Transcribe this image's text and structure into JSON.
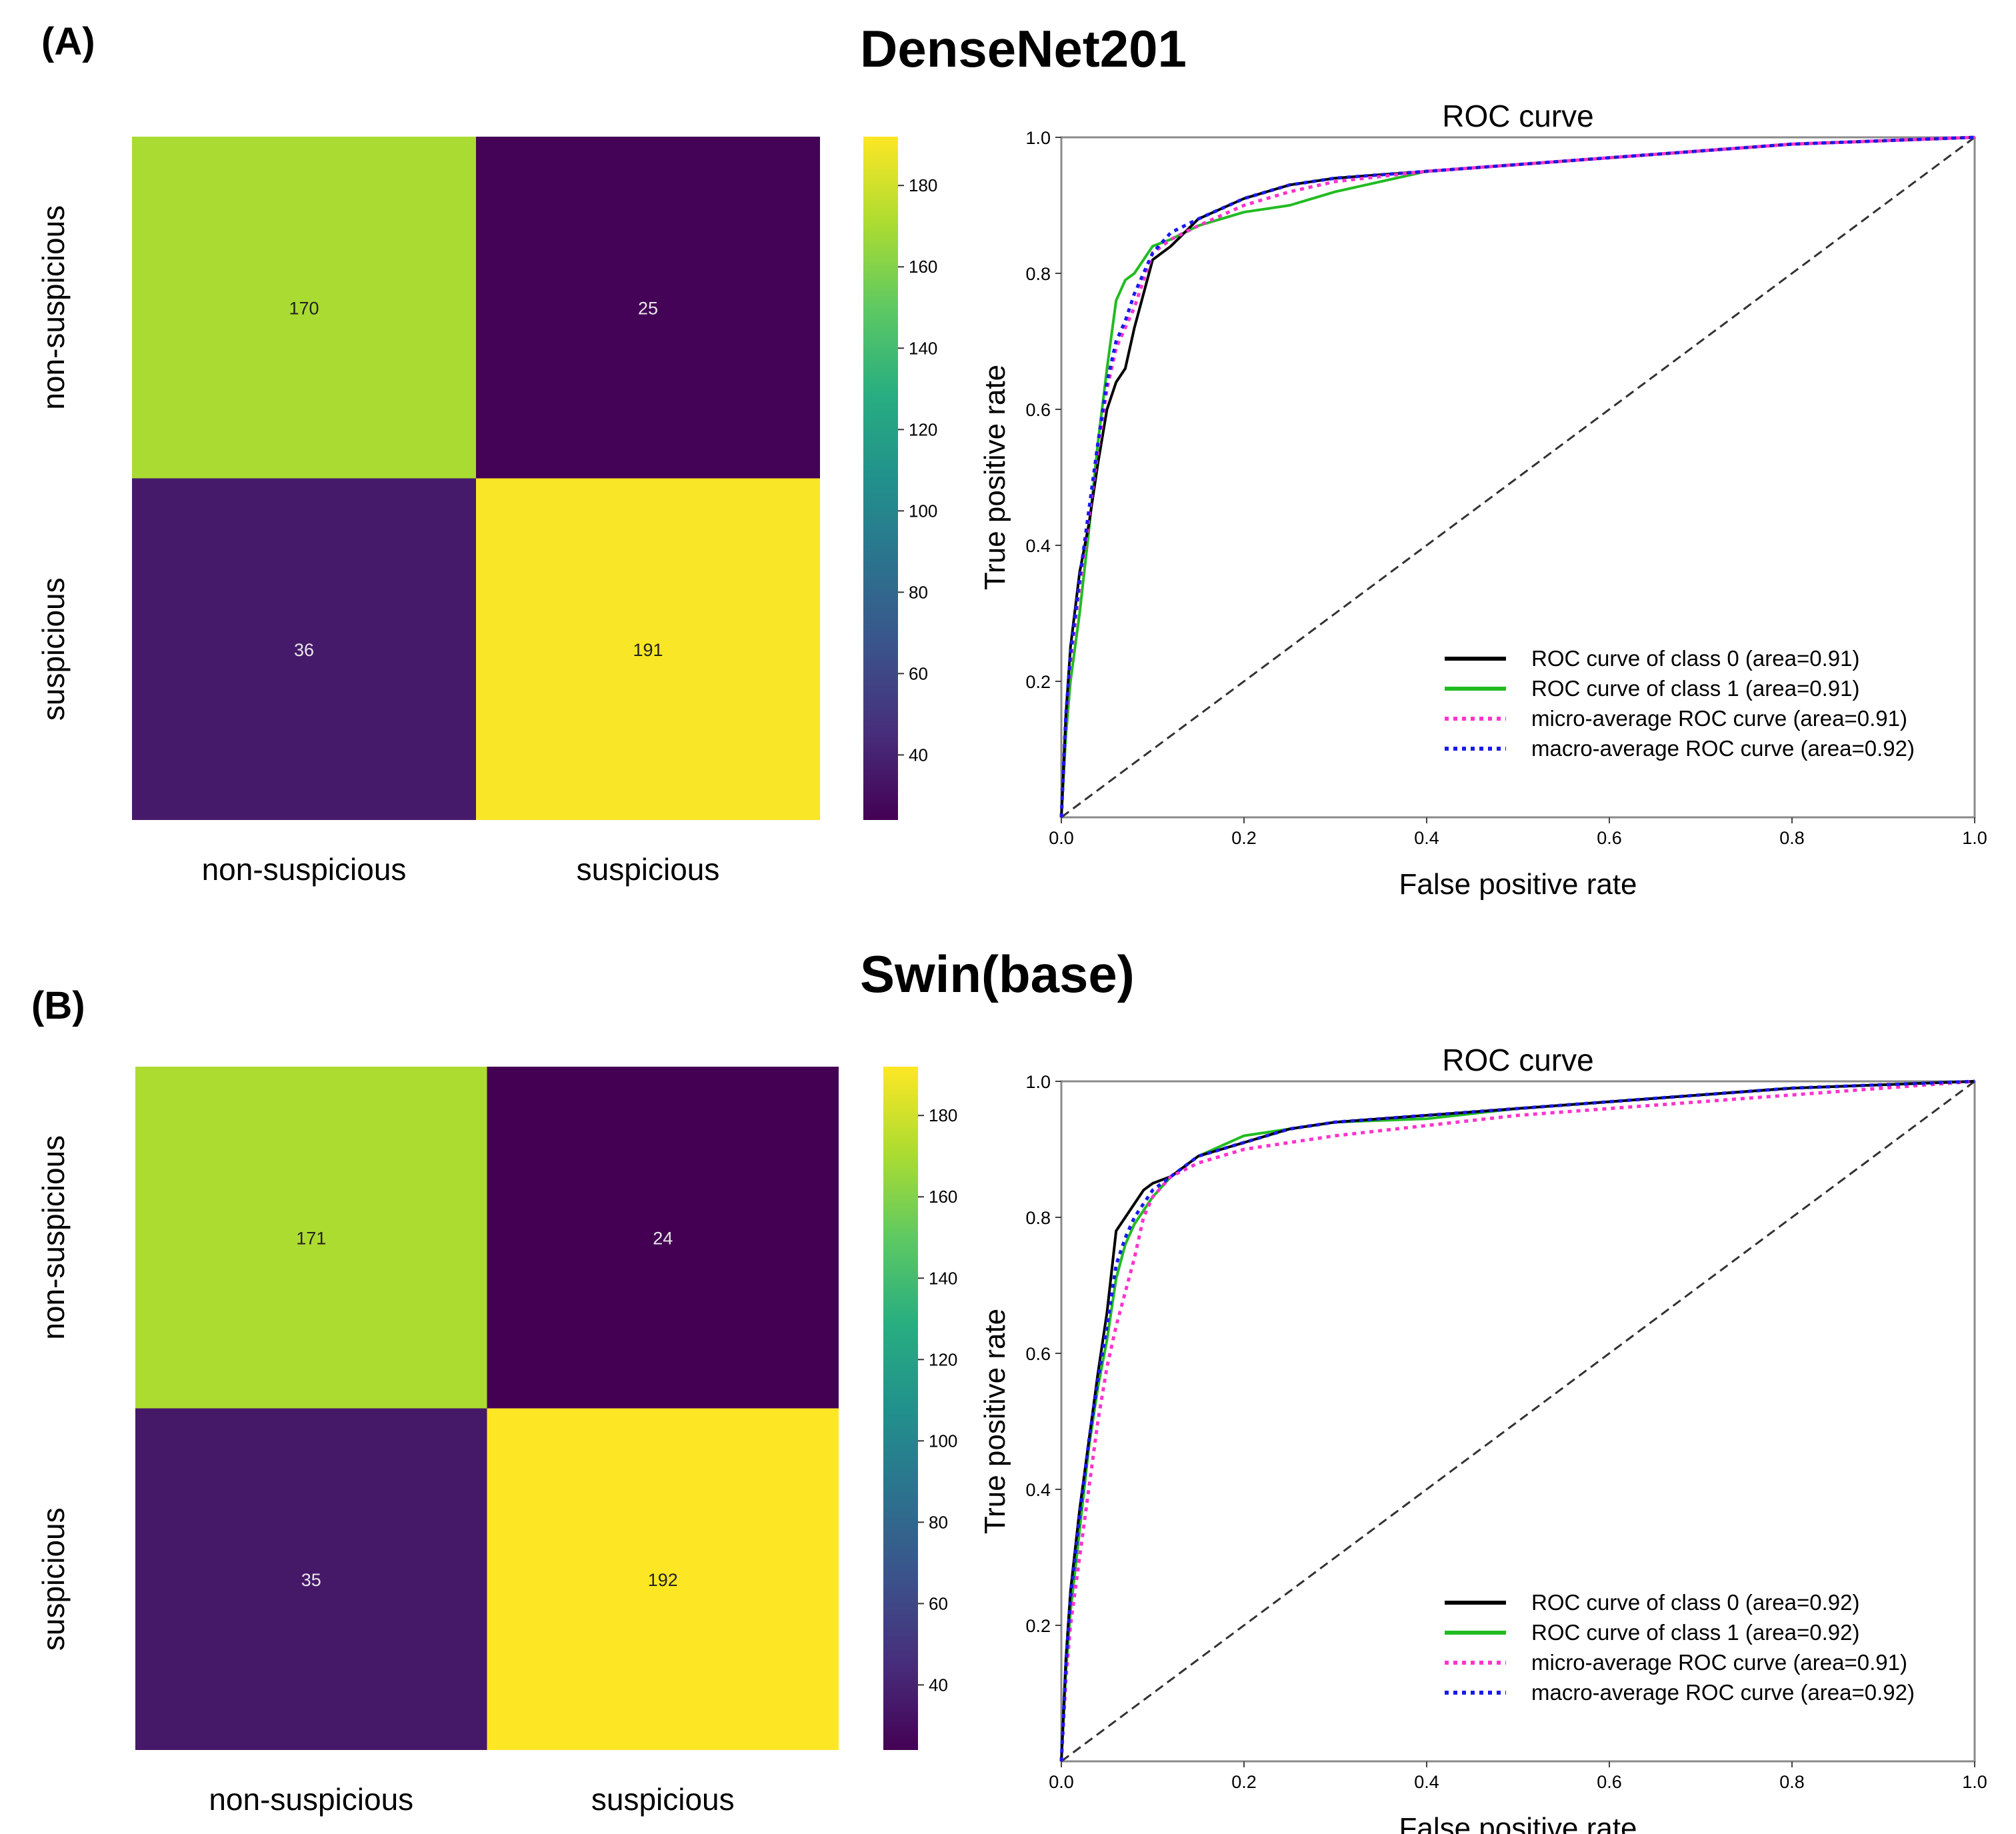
{
  "panels": [
    {
      "label": "(A)",
      "title": "DenseNet201",
      "confusion_matrix": {
        "row_labels": [
          "non-suspicious",
          "suspicious"
        ],
        "col_labels": [
          "non-suspicious",
          "suspicious"
        ],
        "values": [
          [
            170,
            25
          ],
          [
            36,
            191
          ]
        ],
        "colorbar_ticks": [
          40,
          60,
          80,
          100,
          120,
          140,
          160,
          180
        ],
        "colorbar_range": [
          24,
          192
        ]
      },
      "roc": {
        "title": "ROC curve",
        "xlabel": "False positive rate",
        "ylabel": "True positive rate",
        "x_ticks": [
          "0.0",
          "0.2",
          "0.4",
          "0.6",
          "0.8",
          "1.0"
        ],
        "y_ticks": [
          "0.2",
          "0.4",
          "0.6",
          "0.8",
          "1.0"
        ],
        "legend": [
          "ROC curve of class 0 (area=0.91)",
          "ROC curve of class 1 (area=0.91)",
          "micro-average ROC curve (area=0.91)",
          "macro-average ROC curve (area=0.92)"
        ]
      }
    },
    {
      "label": "(B)",
      "title": "Swin(base)",
      "confusion_matrix": {
        "row_labels": [
          "non-suspicious",
          "suspicious"
        ],
        "col_labels": [
          "non-suspicious",
          "suspicious"
        ],
        "values": [
          [
            171,
            24
          ],
          [
            35,
            192
          ]
        ],
        "colorbar_ticks": [
          40,
          60,
          80,
          100,
          120,
          140,
          160,
          180
        ],
        "colorbar_range": [
          24,
          192
        ]
      },
      "roc": {
        "title": "ROC curve",
        "xlabel": "False positive rate",
        "ylabel": "True positive rate",
        "x_ticks": [
          "0.0",
          "0.2",
          "0.4",
          "0.6",
          "0.8",
          "1.0"
        ],
        "y_ticks": [
          "0.2",
          "0.4",
          "0.6",
          "0.8",
          "1.0"
        ],
        "legend": [
          "ROC curve of class 0 (area=0.92)",
          "ROC curve of class 1 (area=0.92)",
          "micro-average ROC curve (area=0.91)",
          "macro-average ROC curve (area=0.92)"
        ]
      }
    }
  ],
  "chart_data": [
    {
      "type": "heatmap",
      "title": "DenseNet201",
      "rows": [
        "non-suspicious",
        "suspicious"
      ],
      "cols": [
        "non-suspicious",
        "suspicious"
      ],
      "values": [
        [
          170,
          25
        ],
        [
          36,
          191
        ]
      ],
      "colormap": "viridis",
      "colorbar_ticks": [
        40,
        60,
        80,
        100,
        120,
        140,
        160,
        180
      ]
    },
    {
      "type": "line",
      "title": "ROC curve",
      "xlabel": "False positive rate",
      "ylabel": "True positive rate",
      "xlim": [
        0,
        1
      ],
      "ylim": [
        0,
        1
      ],
      "series": [
        {
          "name": "ROC curve of class 0 (area=0.91)",
          "color": "#000000",
          "style": "solid",
          "x": [
            0,
            0.005,
            0.01,
            0.02,
            0.03,
            0.04,
            0.05,
            0.06,
            0.07,
            0.08,
            0.09,
            0.1,
            0.12,
            0.15,
            0.2,
            0.25,
            0.3,
            0.4,
            0.5,
            0.6,
            0.7,
            0.8,
            0.9,
            1.0
          ],
          "y": [
            0,
            0.15,
            0.25,
            0.36,
            0.43,
            0.52,
            0.6,
            0.64,
            0.66,
            0.72,
            0.77,
            0.82,
            0.84,
            0.88,
            0.91,
            0.93,
            0.94,
            0.95,
            0.96,
            0.97,
            0.98,
            0.99,
            0.995,
            1.0
          ]
        },
        {
          "name": "ROC curve of class 1 (area=0.91)",
          "color": "#22bb22",
          "style": "solid",
          "x": [
            0,
            0.005,
            0.01,
            0.02,
            0.03,
            0.04,
            0.05,
            0.06,
            0.07,
            0.08,
            0.09,
            0.1,
            0.12,
            0.15,
            0.2,
            0.25,
            0.3,
            0.4,
            0.5,
            0.6,
            0.7,
            0.8,
            0.9,
            1.0
          ],
          "y": [
            0,
            0.12,
            0.2,
            0.3,
            0.42,
            0.55,
            0.66,
            0.76,
            0.79,
            0.8,
            0.82,
            0.84,
            0.85,
            0.87,
            0.89,
            0.9,
            0.92,
            0.95,
            0.96,
            0.97,
            0.98,
            0.99,
            0.995,
            1.0
          ]
        },
        {
          "name": "micro-average ROC curve (area=0.91)",
          "color": "#ff33cc",
          "style": "dotted",
          "x": [
            0,
            0.005,
            0.01,
            0.02,
            0.03,
            0.04,
            0.05,
            0.06,
            0.07,
            0.08,
            0.09,
            0.1,
            0.12,
            0.15,
            0.2,
            0.25,
            0.3,
            0.4,
            0.5,
            0.6,
            0.7,
            0.8,
            0.9,
            1.0
          ],
          "y": [
            0,
            0.14,
            0.23,
            0.34,
            0.44,
            0.54,
            0.63,
            0.69,
            0.72,
            0.75,
            0.79,
            0.83,
            0.85,
            0.87,
            0.9,
            0.92,
            0.935,
            0.95,
            0.96,
            0.97,
            0.98,
            0.99,
            0.995,
            1.0
          ]
        },
        {
          "name": "macro-average ROC curve (area=0.92)",
          "color": "#1a1aee",
          "style": "dotted",
          "x": [
            0,
            0.005,
            0.01,
            0.02,
            0.03,
            0.04,
            0.05,
            0.06,
            0.07,
            0.08,
            0.09,
            0.1,
            0.12,
            0.15,
            0.2,
            0.25,
            0.3,
            0.4,
            0.5,
            0.6,
            0.7,
            0.8,
            0.9,
            1.0
          ],
          "y": [
            0,
            0.15,
            0.24,
            0.35,
            0.45,
            0.55,
            0.64,
            0.7,
            0.73,
            0.77,
            0.8,
            0.83,
            0.86,
            0.88,
            0.91,
            0.93,
            0.94,
            0.95,
            0.96,
            0.97,
            0.98,
            0.99,
            0.995,
            1.0
          ]
        },
        {
          "name": "chance",
          "color": "#333333",
          "style": "dashed",
          "x": [
            0,
            1
          ],
          "y": [
            0,
            1
          ]
        }
      ]
    },
    {
      "type": "heatmap",
      "title": "Swin(base)",
      "rows": [
        "non-suspicious",
        "suspicious"
      ],
      "cols": [
        "non-suspicious",
        "suspicious"
      ],
      "values": [
        [
          171,
          24
        ],
        [
          35,
          192
        ]
      ],
      "colormap": "viridis",
      "colorbar_ticks": [
        40,
        60,
        80,
        100,
        120,
        140,
        160,
        180
      ]
    },
    {
      "type": "line",
      "title": "ROC curve",
      "xlabel": "False positive rate",
      "ylabel": "True positive rate",
      "xlim": [
        0,
        1
      ],
      "ylim": [
        0,
        1
      ],
      "series": [
        {
          "name": "ROC curve of class 0 (area=0.92)",
          "color": "#000000",
          "style": "solid",
          "x": [
            0,
            0.005,
            0.01,
            0.02,
            0.03,
            0.04,
            0.05,
            0.06,
            0.07,
            0.08,
            0.09,
            0.1,
            0.12,
            0.15,
            0.2,
            0.25,
            0.3,
            0.4,
            0.5,
            0.6,
            0.7,
            0.8,
            0.9,
            1.0
          ],
          "y": [
            0,
            0.15,
            0.25,
            0.37,
            0.47,
            0.57,
            0.66,
            0.78,
            0.8,
            0.82,
            0.84,
            0.85,
            0.86,
            0.89,
            0.91,
            0.93,
            0.94,
            0.95,
            0.96,
            0.97,
            0.98,
            0.99,
            0.995,
            1.0
          ]
        },
        {
          "name": "ROC curve of class 1 (area=0.92)",
          "color": "#22bb22",
          "style": "solid",
          "x": [
            0,
            0.005,
            0.01,
            0.02,
            0.03,
            0.04,
            0.05,
            0.06,
            0.07,
            0.08,
            0.09,
            0.1,
            0.12,
            0.15,
            0.2,
            0.25,
            0.3,
            0.4,
            0.5,
            0.6,
            0.7,
            0.8,
            0.9,
            1.0
          ],
          "y": [
            0,
            0.13,
            0.22,
            0.34,
            0.46,
            0.55,
            0.62,
            0.71,
            0.76,
            0.79,
            0.81,
            0.83,
            0.86,
            0.89,
            0.92,
            0.93,
            0.94,
            0.945,
            0.96,
            0.97,
            0.98,
            0.99,
            0.995,
            1.0
          ]
        },
        {
          "name": "micro-average ROC curve (area=0.91)",
          "color": "#ff33cc",
          "style": "dotted",
          "x": [
            0,
            0.005,
            0.01,
            0.02,
            0.03,
            0.04,
            0.05,
            0.06,
            0.07,
            0.08,
            0.09,
            0.1,
            0.12,
            0.15,
            0.2,
            0.25,
            0.3,
            0.4,
            0.5,
            0.6,
            0.7,
            0.8,
            0.9,
            1.0
          ],
          "y": [
            0,
            0.12,
            0.2,
            0.3,
            0.4,
            0.5,
            0.58,
            0.64,
            0.69,
            0.74,
            0.8,
            0.83,
            0.86,
            0.88,
            0.9,
            0.91,
            0.92,
            0.935,
            0.95,
            0.96,
            0.97,
            0.98,
            0.99,
            1.0
          ]
        },
        {
          "name": "macro-average ROC curve (area=0.92)",
          "color": "#1a1aee",
          "style": "dotted",
          "x": [
            0,
            0.005,
            0.01,
            0.02,
            0.03,
            0.04,
            0.05,
            0.06,
            0.07,
            0.08,
            0.09,
            0.1,
            0.12,
            0.15,
            0.2,
            0.25,
            0.3,
            0.4,
            0.5,
            0.6,
            0.7,
            0.8,
            0.9,
            1.0
          ],
          "y": [
            0,
            0.14,
            0.24,
            0.36,
            0.47,
            0.56,
            0.64,
            0.73,
            0.77,
            0.8,
            0.82,
            0.84,
            0.86,
            0.89,
            0.91,
            0.93,
            0.94,
            0.95,
            0.96,
            0.97,
            0.98,
            0.99,
            0.995,
            1.0
          ]
        },
        {
          "name": "chance",
          "color": "#333333",
          "style": "dashed",
          "x": [
            0,
            1
          ],
          "y": [
            0,
            1
          ]
        }
      ]
    }
  ]
}
